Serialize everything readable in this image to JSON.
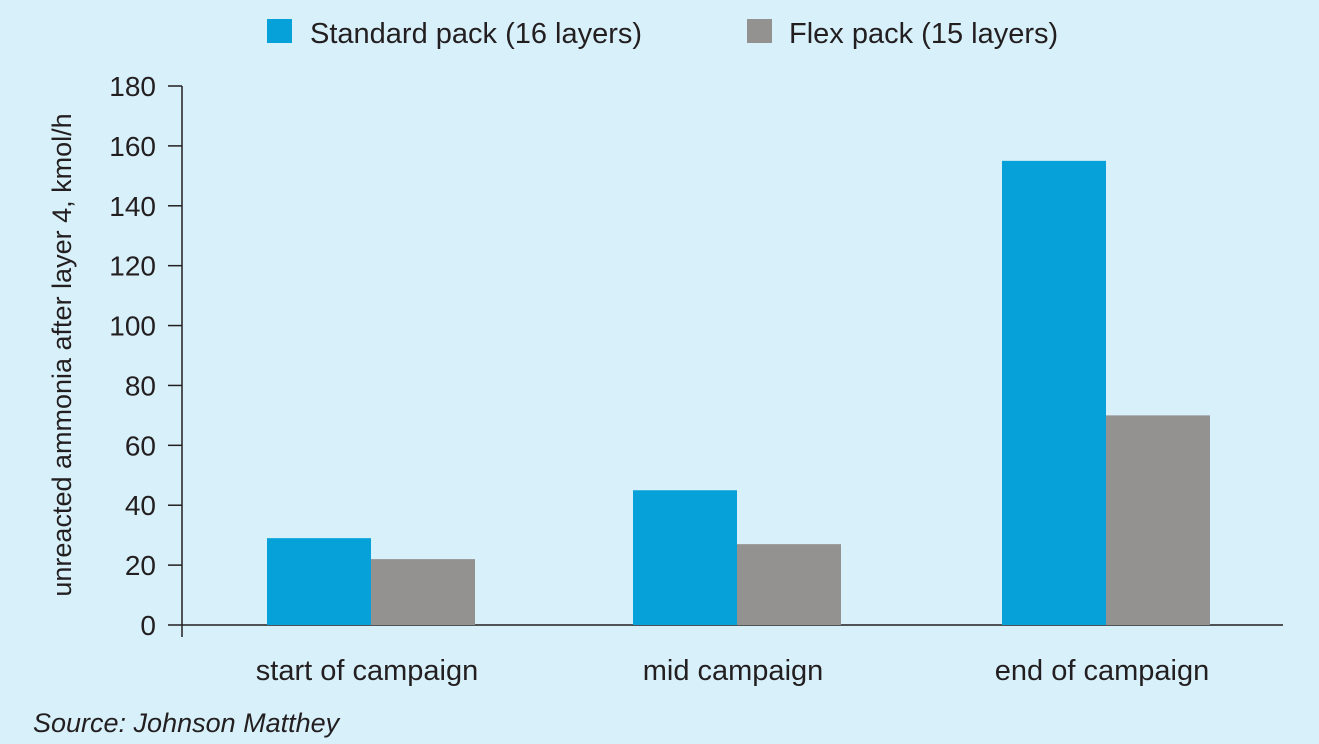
{
  "chart_data": {
    "type": "bar",
    "categories": [
      "start of campaign",
      "mid campaign",
      "end of campaign"
    ],
    "series": [
      {
        "name": "Standard pack (16 layers)",
        "color": "#05a1d8",
        "values": [
          29,
          45,
          155
        ]
      },
      {
        "name": "Flex pack (15 layers)",
        "color": "#949191",
        "values": [
          22,
          27,
          70
        ]
      }
    ],
    "ylabel": "unreacted ammonia after layer 4, kmol/h",
    "xlabel": "",
    "ylim": [
      0,
      180
    ],
    "yticks": [
      0,
      20,
      40,
      60,
      80,
      100,
      120,
      140,
      160,
      180
    ],
    "grid": false,
    "legend_position": "top"
  },
  "source": "Source: Johnson Matthey",
  "colors": {
    "background": "#d8f0fa",
    "axis": "#231f20"
  }
}
